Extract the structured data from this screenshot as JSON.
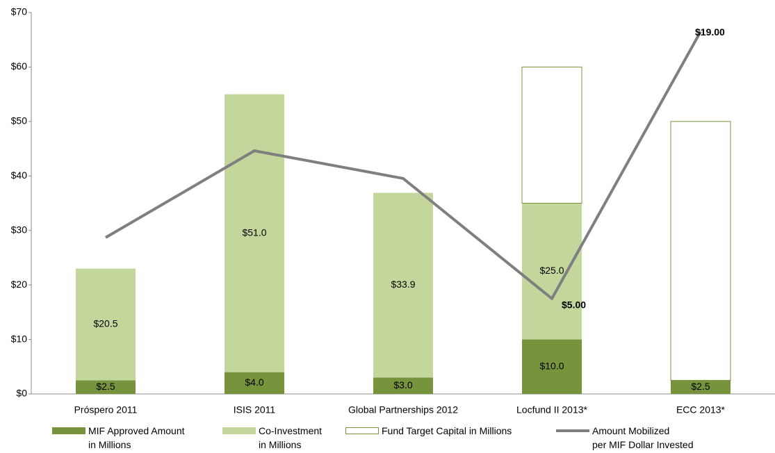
{
  "chart_data": {
    "type": "bar",
    "stacked": true,
    "categories": [
      "Próspero 2011",
      "ISIS 2011",
      "Global Partnerships 2012",
      "Locfund II 2013*",
      "ECC 2013*"
    ],
    "ylim": [
      0,
      70
    ],
    "yticks": [
      {
        "value": 0,
        "label": "$0"
      },
      {
        "value": 10,
        "label": "$10"
      },
      {
        "value": 20,
        "label": "$20"
      },
      {
        "value": 30,
        "label": "$30"
      },
      {
        "value": 40,
        "label": "$40"
      },
      {
        "value": 50,
        "label": "$50"
      },
      {
        "value": 60,
        "label": "$60"
      },
      {
        "value": 70,
        "label": "$70"
      }
    ],
    "y2lim": [
      0,
      20
    ],
    "series": [
      {
        "name": "MIF Approved Amount\nin Millions",
        "color": "#77933c",
        "style": "fill",
        "values": [
          2.5,
          4.0,
          3.0,
          10.0,
          2.5
        ],
        "value_labels": [
          "$2.5",
          "$4.0",
          "$3.0",
          "$10.0",
          "$2.5"
        ]
      },
      {
        "name": "Co-Investment\nin Millions",
        "color": "#c3d69b",
        "style": "fill",
        "values": [
          20.5,
          51.0,
          33.9,
          25.0,
          null
        ],
        "value_labels": [
          "$20.5",
          "$51.0",
          "$33.9",
          "$25.0",
          null
        ]
      },
      {
        "name": "Fund Target Capital in Millions",
        "color": "#77933c",
        "style": "outline",
        "values": [
          null,
          null,
          null,
          25.0,
          47.5
        ]
      },
      {
        "name": "Amount Mobilized\nper MIF Dollar Invested",
        "color": "#7f7f7f",
        "type": "line",
        "axis": "y2",
        "values": [
          8.2,
          12.75,
          11.3,
          5.0,
          19.0
        ],
        "value_labels": [
          null,
          null,
          null,
          "$5.00",
          "$19.00"
        ]
      }
    ]
  }
}
